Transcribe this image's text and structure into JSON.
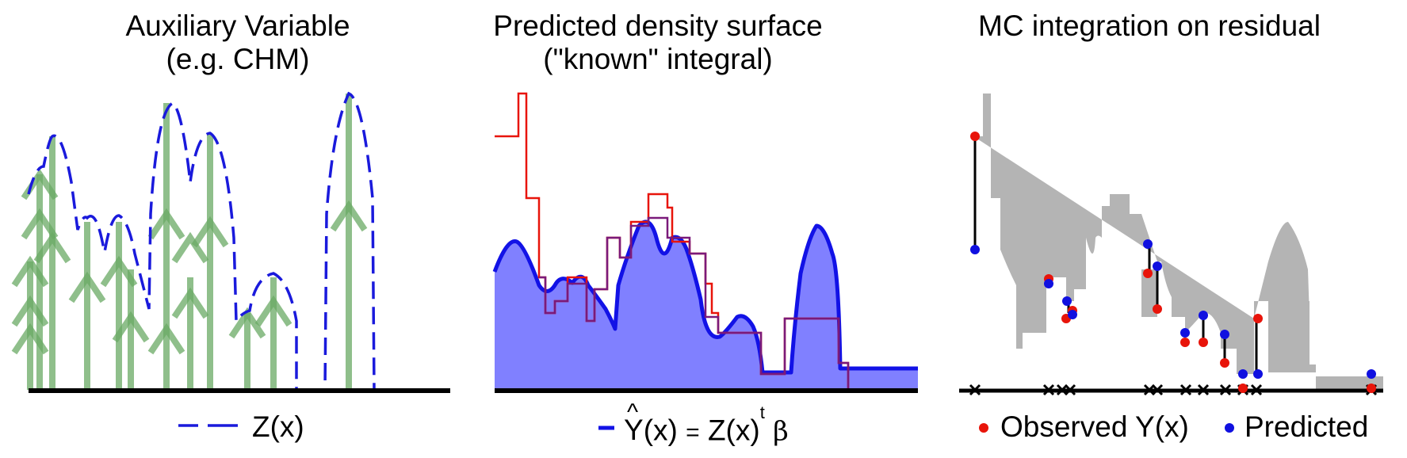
{
  "panels": {
    "left": {
      "title_line1": "Auxiliary Variable",
      "title_line2": "(e.g. CHM)",
      "legend_label": "Z(x)"
    },
    "middle": {
      "title_line1": "Predicted density surface",
      "title_line2": "(\"known\" integral)",
      "legend_hat": "^",
      "legend_Y": "Y",
      "legend_x1": "(x)",
      "legend_eq": "=",
      "legend_Z": "Z(x)",
      "legend_t": "t",
      "legend_beta": "β"
    },
    "right": {
      "title": "MC integration on residual",
      "legend_observed": "Observed Y(x)",
      "legend_predicted": "Predicted"
    }
  },
  "colors": {
    "tree_green": "#6aaa64",
    "chm_blue": "#1a1adc",
    "step_red": "#e8140a",
    "fill_blue": "#8080ff",
    "overlap_purple": "#7a1a7a",
    "residual_gray": "#b4b4b4",
    "observed_dot": "#e8140a",
    "predicted_dot": "#1010e0",
    "axis": "#000000"
  }
}
